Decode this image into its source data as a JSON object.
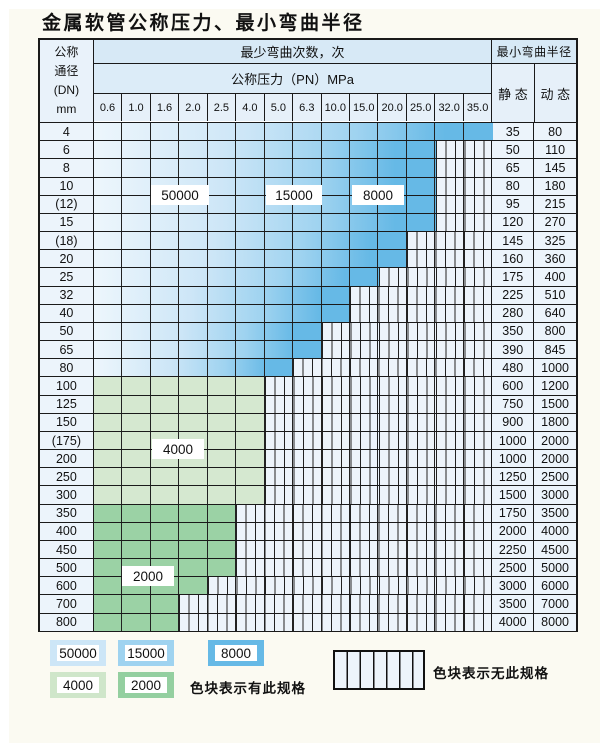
{
  "title": "金属软管公称压力、最小弯曲半径",
  "table": {
    "header": {
      "dn_label_lines": [
        "公称",
        "通径",
        "(DN)",
        "mm"
      ],
      "cycles_label": "最少弯曲次数，次",
      "pressure_label": "公称压力（PN）MPa",
      "pressures": [
        "0.6",
        "1.0",
        "1.6",
        "2.0",
        "2.5",
        "4.0",
        "5.0",
        "6.3",
        "10.0",
        "15.0",
        "20.0",
        "25.0",
        "32.0",
        "35.0"
      ],
      "radius_label": "最小弯曲半径",
      "static_label": "静 态",
      "dynamic_label": "动 态"
    },
    "zone_labels": [
      {
        "text": "50000"
      },
      {
        "text": "15000"
      },
      {
        "text": "8000"
      },
      {
        "text": "4000"
      },
      {
        "text": "2000"
      }
    ]
  },
  "chart_data": {
    "type": "heatmap",
    "title": "金属软管公称压力、最小弯曲半径",
    "xlabel": "公称压力（PN）MPa",
    "ylabel": "公称通径 (DN) mm",
    "value_meaning": "最少弯曲次数，次 (null = 无此规格)",
    "columns": [
      0.6,
      1.0,
      1.6,
      2.0,
      2.5,
      4.0,
      5.0,
      6.3,
      10.0,
      15.0,
      20.0,
      25.0,
      32.0,
      35.0
    ],
    "radius_columns": [
      "静态",
      "动态"
    ],
    "rows": [
      {
        "dn": "4",
        "static": "35",
        "dynamic": "80",
        "cells": [
          50000,
          50000,
          50000,
          50000,
          50000,
          50000,
          50000,
          50000,
          50000,
          15000,
          15000,
          15000,
          8000,
          8000
        ]
      },
      {
        "dn": "6",
        "static": "50",
        "dynamic": "110",
        "cells": [
          50000,
          50000,
          50000,
          50000,
          50000,
          50000,
          50000,
          15000,
          15000,
          15000,
          8000,
          8000,
          null,
          null
        ]
      },
      {
        "dn": "8",
        "static": "65",
        "dynamic": "145",
        "cells": [
          50000,
          50000,
          50000,
          50000,
          50000,
          50000,
          50000,
          15000,
          15000,
          15000,
          8000,
          8000,
          null,
          null
        ]
      },
      {
        "dn": "10",
        "static": "80",
        "dynamic": "180",
        "cells": [
          50000,
          50000,
          50000,
          50000,
          50000,
          50000,
          50000,
          15000,
          15000,
          15000,
          8000,
          8000,
          null,
          null
        ]
      },
      {
        "dn": "(12)",
        "static": "95",
        "dynamic": "215",
        "cells": [
          50000,
          50000,
          50000,
          50000,
          50000,
          50000,
          50000,
          15000,
          15000,
          15000,
          8000,
          8000,
          null,
          null
        ]
      },
      {
        "dn": "15",
        "static": "120",
        "dynamic": "270",
        "cells": [
          50000,
          50000,
          50000,
          50000,
          50000,
          50000,
          50000,
          15000,
          15000,
          15000,
          8000,
          8000,
          null,
          null
        ]
      },
      {
        "dn": "(18)",
        "static": "145",
        "dynamic": "325",
        "cells": [
          50000,
          50000,
          50000,
          50000,
          50000,
          50000,
          15000,
          15000,
          15000,
          8000,
          8000,
          null,
          null,
          null
        ]
      },
      {
        "dn": "20",
        "static": "160",
        "dynamic": "360",
        "cells": [
          50000,
          50000,
          50000,
          50000,
          50000,
          50000,
          15000,
          15000,
          15000,
          8000,
          8000,
          null,
          null,
          null
        ]
      },
      {
        "dn": "25",
        "static": "175",
        "dynamic": "400",
        "cells": [
          50000,
          50000,
          50000,
          50000,
          50000,
          15000,
          15000,
          15000,
          8000,
          8000,
          null,
          null,
          null,
          null
        ]
      },
      {
        "dn": "32",
        "static": "225",
        "dynamic": "510",
        "cells": [
          50000,
          50000,
          50000,
          50000,
          15000,
          15000,
          15000,
          8000,
          8000,
          null,
          null,
          null,
          null,
          null
        ]
      },
      {
        "dn": "40",
        "static": "280",
        "dynamic": "640",
        "cells": [
          50000,
          50000,
          50000,
          50000,
          15000,
          15000,
          15000,
          8000,
          8000,
          null,
          null,
          null,
          null,
          null
        ]
      },
      {
        "dn": "50",
        "static": "350",
        "dynamic": "800",
        "cells": [
          50000,
          50000,
          50000,
          15000,
          15000,
          15000,
          8000,
          8000,
          null,
          null,
          null,
          null,
          null,
          null
        ]
      },
      {
        "dn": "65",
        "static": "390",
        "dynamic": "845",
        "cells": [
          50000,
          50000,
          50000,
          15000,
          15000,
          15000,
          8000,
          8000,
          null,
          null,
          null,
          null,
          null,
          null
        ]
      },
      {
        "dn": "80",
        "static": "480",
        "dynamic": "1000",
        "cells": [
          50000,
          50000,
          15000,
          15000,
          15000,
          8000,
          8000,
          null,
          null,
          null,
          null,
          null,
          null,
          null
        ]
      },
      {
        "dn": "100",
        "static": "600",
        "dynamic": "1200",
        "cells": [
          4000,
          4000,
          4000,
          4000,
          4000,
          4000,
          null,
          null,
          null,
          null,
          null,
          null,
          null,
          null
        ]
      },
      {
        "dn": "125",
        "static": "750",
        "dynamic": "1500",
        "cells": [
          4000,
          4000,
          4000,
          4000,
          4000,
          4000,
          null,
          null,
          null,
          null,
          null,
          null,
          null,
          null
        ]
      },
      {
        "dn": "150",
        "static": "900",
        "dynamic": "1800",
        "cells": [
          4000,
          4000,
          4000,
          4000,
          4000,
          4000,
          null,
          null,
          null,
          null,
          null,
          null,
          null,
          null
        ]
      },
      {
        "dn": "(175)",
        "static": "1000",
        "dynamic": "2000",
        "cells": [
          4000,
          4000,
          4000,
          4000,
          4000,
          4000,
          null,
          null,
          null,
          null,
          null,
          null,
          null,
          null
        ]
      },
      {
        "dn": "200",
        "static": "1000",
        "dynamic": "2000",
        "cells": [
          4000,
          4000,
          4000,
          4000,
          4000,
          4000,
          null,
          null,
          null,
          null,
          null,
          null,
          null,
          null
        ]
      },
      {
        "dn": "250",
        "static": "1250",
        "dynamic": "2500",
        "cells": [
          4000,
          4000,
          4000,
          4000,
          4000,
          4000,
          null,
          null,
          null,
          null,
          null,
          null,
          null,
          null
        ]
      },
      {
        "dn": "300",
        "static": "1500",
        "dynamic": "3000",
        "cells": [
          4000,
          4000,
          4000,
          4000,
          4000,
          4000,
          null,
          null,
          null,
          null,
          null,
          null,
          null,
          null
        ]
      },
      {
        "dn": "350",
        "static": "1750",
        "dynamic": "3500",
        "cells": [
          2000,
          2000,
          2000,
          2000,
          2000,
          null,
          null,
          null,
          null,
          null,
          null,
          null,
          null,
          null
        ]
      },
      {
        "dn": "400",
        "static": "2000",
        "dynamic": "4000",
        "cells": [
          2000,
          2000,
          2000,
          2000,
          2000,
          null,
          null,
          null,
          null,
          null,
          null,
          null,
          null,
          null
        ]
      },
      {
        "dn": "450",
        "static": "2250",
        "dynamic": "4500",
        "cells": [
          2000,
          2000,
          2000,
          2000,
          2000,
          null,
          null,
          null,
          null,
          null,
          null,
          null,
          null,
          null
        ]
      },
      {
        "dn": "500",
        "static": "2500",
        "dynamic": "5000",
        "cells": [
          2000,
          2000,
          2000,
          2000,
          2000,
          null,
          null,
          null,
          null,
          null,
          null,
          null,
          null,
          null
        ]
      },
      {
        "dn": "600",
        "static": "3000",
        "dynamic": "6000",
        "cells": [
          2000,
          2000,
          2000,
          2000,
          null,
          null,
          null,
          null,
          null,
          null,
          null,
          null,
          null,
          null
        ]
      },
      {
        "dn": "700",
        "static": "3500",
        "dynamic": "7000",
        "cells": [
          2000,
          2000,
          2000,
          null,
          null,
          null,
          null,
          null,
          null,
          null,
          null,
          null,
          null,
          null
        ]
      },
      {
        "dn": "800",
        "static": "4000",
        "dynamic": "8000",
        "cells": [
          2000,
          2000,
          2000,
          null,
          null,
          null,
          null,
          null,
          null,
          null,
          null,
          null,
          null,
          null
        ]
      }
    ]
  },
  "legend": {
    "items": [
      {
        "label": "50000",
        "color": "#cde6f7"
      },
      {
        "label": "15000",
        "color": "#9fd3f0"
      },
      {
        "label": "8000",
        "color": "#66b9e6"
      },
      {
        "label": "4000",
        "color": "#cfe6ca"
      },
      {
        "label": "2000",
        "color": "#94cfa0"
      }
    ],
    "has_spec_text": "色块表示有此规格",
    "no_spec_text": "色块表示无此规格"
  },
  "colors": {
    "cycle_50000": "#cde6f7",
    "cycle_15000": "#9fd3f0",
    "cycle_8000": "#66b9e6",
    "cycle_4000": "#d5e8d0",
    "cycle_2000": "#9bd2a5",
    "blue_gradient_start": "#edf6fc",
    "striped_bg": "#edf4fb",
    "grid_line": "#222222",
    "page_bg": "#fbfaf2"
  }
}
